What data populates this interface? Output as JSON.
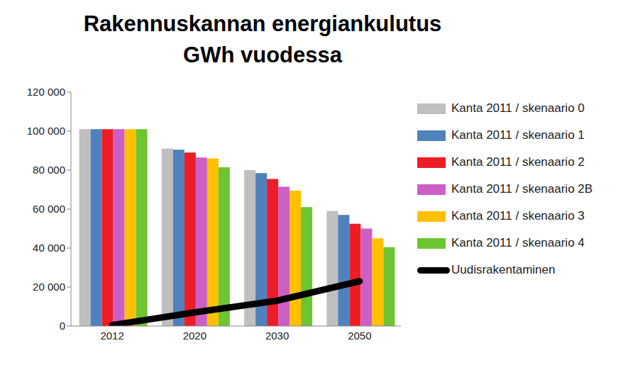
{
  "chart_data": {
    "type": "bar",
    "title": "Rakennuskannan energiankulutus\nGWh vuodessa",
    "categories": [
      "2012",
      "2020",
      "2030",
      "2050"
    ],
    "series": [
      {
        "name": "Kanta 2011 / skenaario 0",
        "color": "#bfbfbf",
        "type": "bar",
        "values": [
          101000,
          91000,
          80000,
          59000
        ]
      },
      {
        "name": "Kanta 2011 / skenaario 1",
        "color": "#4f81bd",
        "type": "bar",
        "values": [
          101000,
          90500,
          78500,
          57000
        ]
      },
      {
        "name": "Kanta 2011 / skenaario 2",
        "color": "#ee1c25",
        "type": "bar",
        "values": [
          101000,
          89000,
          75500,
          52500
        ]
      },
      {
        "name": "Kanta 2011 / skenaario 2B",
        "color": "#cc5fc6",
        "type": "bar",
        "values": [
          101000,
          86500,
          71500,
          50000
        ]
      },
      {
        "name": "Kanta 2011 / skenaario 3",
        "color": "#ffc000",
        "type": "bar",
        "values": [
          101000,
          86000,
          69500,
          45000
        ]
      },
      {
        "name": "Kanta 2011 / skenaario 4",
        "color": "#6cc531",
        "type": "bar",
        "values": [
          101000,
          81500,
          61000,
          40500
        ]
      },
      {
        "name": "Uudisrakentaminen",
        "color": "#000000",
        "type": "line",
        "values": [
          500,
          7000,
          13000,
          23000
        ]
      }
    ],
    "ylim": [
      0,
      120000
    ],
    "yticks": [
      0,
      {
        "value": 20000,
        "label": "20 000"
      },
      {
        "value": 40000,
        "label": "40 000"
      },
      {
        "value": 60000,
        "label": "60 000"
      },
      {
        "value": 80000,
        "label": "80 000"
      },
      {
        "value": 100000,
        "label": "100 000"
      },
      {
        "value": 120000,
        "label": "120 000"
      }
    ],
    "grid": false,
    "legend": "right"
  }
}
